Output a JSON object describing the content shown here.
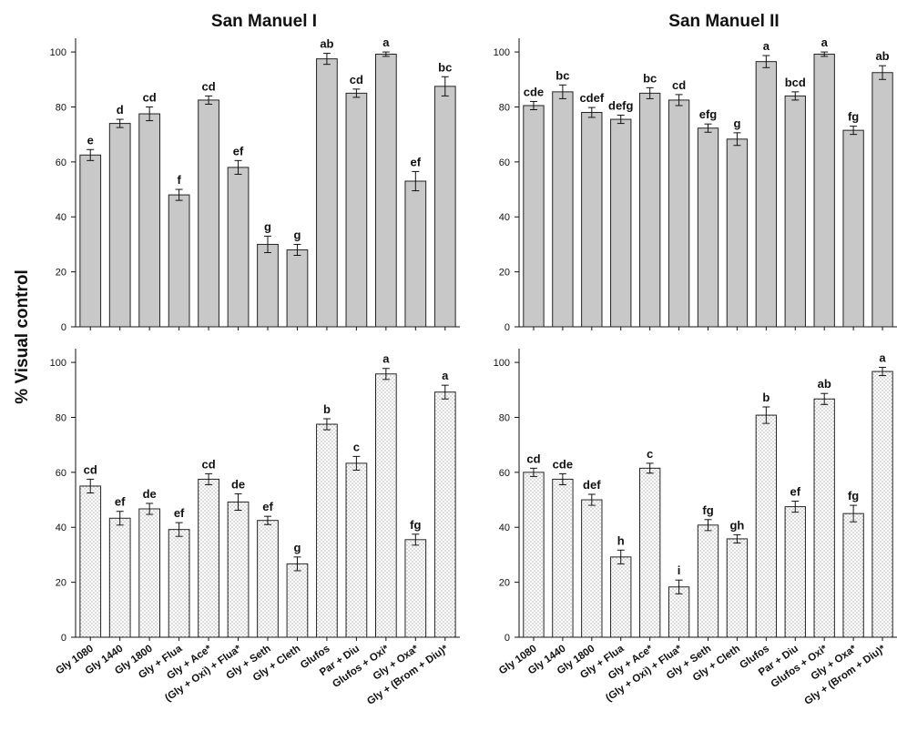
{
  "ylabel": "% Visual control",
  "chart_data": [
    {
      "type": "bar",
      "title": "San Manuel I",
      "row": "top",
      "ylim": [
        0,
        105
      ],
      "yticks": [
        0,
        20,
        40,
        60,
        80,
        100
      ],
      "fill": "#c8c8c8",
      "pattern": "solid",
      "categories": [
        "Gly 1080",
        "Gly 1440",
        "Gly 1800",
        "Gly + Flua",
        "Gly + Ace*",
        "(Gly + Oxi) + Flua*",
        "Gly + Seth",
        "Gly + Cleth",
        "Glufos",
        "Par + Diu",
        "Glufos + Oxi*",
        "Gly + Oxa*",
        "Gly + (Brom + Diu)*"
      ],
      "values": [
        62.5,
        74,
        77.5,
        48,
        82.5,
        58,
        30,
        28,
        97.5,
        85,
        99.2,
        53,
        87.5
      ],
      "errors": [
        2,
        1.5,
        2.5,
        2,
        1.5,
        2.5,
        3,
        2,
        2,
        1.5,
        0.8,
        3.5,
        3.5
      ],
      "labels": [
        "e",
        "d",
        "cd",
        "f",
        "cd",
        "ef",
        "g",
        "g",
        "ab",
        "cd",
        "a",
        "ef",
        "bc"
      ]
    },
    {
      "type": "bar",
      "title": "San Manuel II",
      "row": "top",
      "ylim": [
        0,
        105
      ],
      "yticks": [
        0,
        20,
        40,
        60,
        80,
        100
      ],
      "fill": "#c8c8c8",
      "pattern": "solid",
      "categories": [
        "Gly 1080",
        "Gly 1440",
        "Gly 1800",
        "Gly + Flua",
        "Gly + Ace*",
        "(Gly + Oxi) + Flua*",
        "Gly + Seth",
        "Gly + Cleth",
        "Glufos",
        "Par + Diu",
        "Glufos + Oxi*",
        "Gly + Oxa*",
        "Gly + (Brom + Diu)*"
      ],
      "values": [
        80.5,
        85.5,
        78,
        75.5,
        85,
        82.5,
        72.3,
        68.3,
        96.5,
        84,
        99.2,
        71.5,
        92.5
      ],
      "errors": [
        1.5,
        2.5,
        1.8,
        1.5,
        2,
        2,
        1.5,
        2.3,
        2.2,
        1.5,
        0.8,
        1.5,
        2.5
      ],
      "labels": [
        "cde",
        "bc",
        "cdef",
        "defg",
        "bc",
        "cd",
        "efg",
        "g",
        "a",
        "bcd",
        "a",
        "fg",
        "ab"
      ]
    },
    {
      "type": "bar",
      "title": "",
      "row": "bottom",
      "ylim": [
        0,
        105
      ],
      "yticks": [
        0,
        20,
        40,
        60,
        80,
        100
      ],
      "fill": "#ffffff",
      "pattern": "dotted",
      "categories": [
        "Gly 1080",
        "Gly 1440",
        "Gly 1800",
        "Gly + Flua",
        "Gly + Ace*",
        "(Gly + Oxi) + Flua*",
        "Gly + Seth",
        "Gly + Cleth",
        "Glufos",
        "Par + Diu",
        "Glufos + Oxi*",
        "Gly + Oxa*",
        "Gly + (Brom + Diu)*"
      ],
      "values": [
        55,
        43.3,
        46.7,
        39.2,
        57.5,
        49.2,
        42.5,
        26.7,
        77.5,
        63.3,
        95.8,
        35.5,
        89.2
      ],
      "errors": [
        2.5,
        2.5,
        2,
        2.5,
        2,
        3,
        1.5,
        2.5,
        2,
        2.5,
        2,
        2,
        2.5
      ],
      "labels": [
        "cd",
        "ef",
        "de",
        "ef",
        "cd",
        "de",
        "ef",
        "g",
        "b",
        "c",
        "a",
        "fg",
        "a"
      ]
    },
    {
      "type": "bar",
      "title": "",
      "row": "bottom",
      "ylim": [
        0,
        105
      ],
      "yticks": [
        0,
        20,
        40,
        60,
        80,
        100
      ],
      "fill": "#ffffff",
      "pattern": "dotted",
      "categories": [
        "Gly 1080",
        "Gly 1440",
        "Gly 1800",
        "Gly + Flua",
        "Gly + Ace*",
        "(Gly + Oxi) + Flua*",
        "Gly + Seth",
        "Gly + Cleth",
        "Glufos",
        "Par + Diu",
        "Glufos + Oxi*",
        "Gly + Oxa*",
        "Gly + (Brom + Diu)*"
      ],
      "values": [
        60,
        57.5,
        50,
        29.2,
        61.5,
        18.3,
        40.8,
        35.8,
        80.8,
        47.5,
        86.7,
        45,
        96.7
      ],
      "errors": [
        1.5,
        2,
        2,
        2.5,
        1.8,
        2.5,
        2,
        1.5,
        3,
        2,
        2,
        3,
        1.5
      ],
      "labels": [
        "cd",
        "cde",
        "def",
        "h",
        "c",
        "i",
        "fg",
        "gh",
        "b",
        "ef",
        "ab",
        "fg",
        "a"
      ]
    }
  ]
}
